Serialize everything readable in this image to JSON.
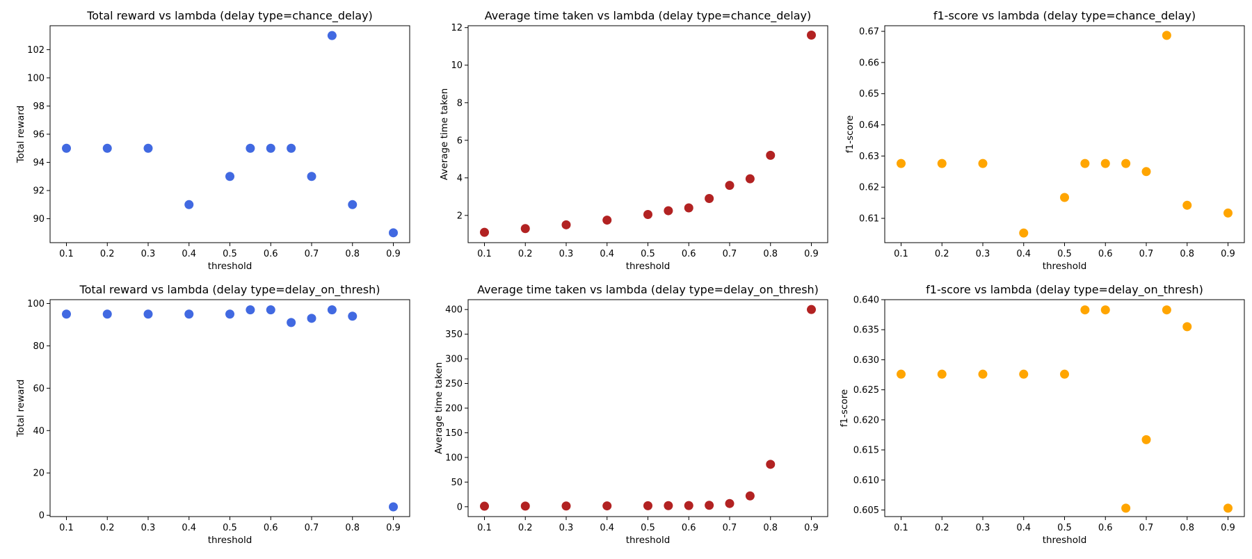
{
  "chart_data": [
    {
      "type": "scatter",
      "title": "Total reward vs lambda (delay type=chance_delay)",
      "xlabel": "threshold",
      "ylabel": "Total reward",
      "xlim": [
        0.06,
        0.94
      ],
      "ylim": [
        88.3,
        103.7
      ],
      "xticks": [
        0.1,
        0.2,
        0.3,
        0.4,
        0.5,
        0.6,
        0.7,
        0.8,
        0.9
      ],
      "xtick_labels": [
        "0.1",
        "0.2",
        "0.3",
        "0.4",
        "0.5",
        "0.6",
        "0.7",
        "0.8",
        "0.9"
      ],
      "yticks": [
        90,
        92,
        94,
        96,
        98,
        100,
        102
      ],
      "ytick_labels": [
        "90",
        "92",
        "94",
        "96",
        "98",
        "100",
        "102"
      ],
      "color": "#4169e1",
      "x": [
        0.1,
        0.2,
        0.3,
        0.4,
        0.5,
        0.55,
        0.6,
        0.65,
        0.7,
        0.75,
        0.8,
        0.9
      ],
      "y": [
        95,
        95,
        95,
        91,
        93,
        95,
        95,
        95,
        93,
        103,
        91,
        89
      ]
    },
    {
      "type": "scatter",
      "title": "Average time taken vs lambda (delay type=chance_delay)",
      "xlabel": "threshold",
      "ylabel": "Average time taken",
      "xlim": [
        0.06,
        0.94
      ],
      "ylim": [
        0.55,
        12.1
      ],
      "xticks": [
        0.1,
        0.2,
        0.3,
        0.4,
        0.5,
        0.6,
        0.7,
        0.8,
        0.9
      ],
      "xtick_labels": [
        "0.1",
        "0.2",
        "0.3",
        "0.4",
        "0.5",
        "0.6",
        "0.7",
        "0.8",
        "0.9"
      ],
      "yticks": [
        2,
        4,
        6,
        8,
        10,
        12
      ],
      "ytick_labels": [
        "2",
        "4",
        "6",
        "8",
        "10",
        "12"
      ],
      "color": "#b22222",
      "x": [
        0.1,
        0.2,
        0.3,
        0.4,
        0.5,
        0.55,
        0.6,
        0.65,
        0.7,
        0.75,
        0.8,
        0.9
      ],
      "y": [
        1.1,
        1.3,
        1.5,
        1.75,
        2.05,
        2.25,
        2.4,
        2.9,
        3.6,
        3.95,
        5.2,
        11.6
      ]
    },
    {
      "type": "scatter",
      "title": "f1-score vs lambda (delay type=chance_delay)",
      "xlabel": "threshold",
      "ylabel": "f1-score",
      "xlim": [
        0.06,
        0.94
      ],
      "ylim": [
        0.6022,
        0.6718
      ],
      "xticks": [
        0.1,
        0.2,
        0.3,
        0.4,
        0.5,
        0.6,
        0.7,
        0.8,
        0.9
      ],
      "xtick_labels": [
        "0.1",
        "0.2",
        "0.3",
        "0.4",
        "0.5",
        "0.6",
        "0.7",
        "0.8",
        "0.9"
      ],
      "yticks": [
        0.61,
        0.62,
        0.63,
        0.64,
        0.65,
        0.66,
        0.67
      ],
      "ytick_labels": [
        "0.61",
        "0.62",
        "0.63",
        "0.64",
        "0.65",
        "0.66",
        "0.67"
      ],
      "color": "#ffa500",
      "x": [
        0.1,
        0.2,
        0.3,
        0.4,
        0.5,
        0.55,
        0.6,
        0.65,
        0.7,
        0.75,
        0.8,
        0.9
      ],
      "y": [
        0.6276,
        0.6276,
        0.6276,
        0.6053,
        0.6167,
        0.6276,
        0.6276,
        0.6276,
        0.625,
        0.6687,
        0.6142,
        0.6117
      ]
    },
    {
      "type": "scatter",
      "title": "Total reward vs lambda (delay type=delay_on_thresh)",
      "xlabel": "threshold",
      "ylabel": "Total reward",
      "xlim": [
        0.06,
        0.94
      ],
      "ylim": [
        -0.6,
        101.8
      ],
      "xticks": [
        0.1,
        0.2,
        0.3,
        0.4,
        0.5,
        0.6,
        0.7,
        0.8,
        0.9
      ],
      "xtick_labels": [
        "0.1",
        "0.2",
        "0.3",
        "0.4",
        "0.5",
        "0.6",
        "0.7",
        "0.8",
        "0.9"
      ],
      "yticks": [
        0,
        20,
        40,
        60,
        80,
        100
      ],
      "ytick_labels": [
        "0",
        "20",
        "40",
        "60",
        "80",
        "100"
      ],
      "color": "#4169e1",
      "x": [
        0.1,
        0.2,
        0.3,
        0.4,
        0.5,
        0.55,
        0.6,
        0.65,
        0.7,
        0.75,
        0.8,
        0.9
      ],
      "y": [
        95,
        95,
        95,
        95,
        95,
        97,
        97,
        91,
        93,
        97,
        94,
        4
      ]
    },
    {
      "type": "scatter",
      "title": "Average time taken vs lambda (delay type=delay_on_thresh)",
      "xlabel": "threshold",
      "ylabel": "Average time taken",
      "xlim": [
        0.06,
        0.94
      ],
      "ylim": [
        -20,
        420
      ],
      "xticks": [
        0.1,
        0.2,
        0.3,
        0.4,
        0.5,
        0.6,
        0.7,
        0.8,
        0.9
      ],
      "xtick_labels": [
        "0.1",
        "0.2",
        "0.3",
        "0.4",
        "0.5",
        "0.6",
        "0.7",
        "0.8",
        "0.9"
      ],
      "yticks": [
        0,
        50,
        100,
        150,
        200,
        250,
        300,
        350,
        400
      ],
      "ytick_labels": [
        "0",
        "50",
        "100",
        "150",
        "200",
        "250",
        "300",
        "350",
        "400"
      ],
      "color": "#b22222",
      "x": [
        0.1,
        0.2,
        0.3,
        0.4,
        0.5,
        0.55,
        0.6,
        0.65,
        0.7,
        0.75,
        0.8,
        0.9
      ],
      "y": [
        1.1,
        1.3,
        1.5,
        1.75,
        2.05,
        2.25,
        2.4,
        2.9,
        6.5,
        22,
        86,
        400
      ]
    },
    {
      "type": "scatter",
      "title": "f1-score vs lambda (delay type=delay_on_thresh)",
      "xlabel": "threshold",
      "ylabel": "f1-score",
      "xlim": [
        0.06,
        0.94
      ],
      "ylim": [
        0.6039,
        0.64
      ],
      "xticks": [
        0.1,
        0.2,
        0.3,
        0.4,
        0.5,
        0.6,
        0.7,
        0.8,
        0.9
      ],
      "xtick_labels": [
        "0.1",
        "0.2",
        "0.3",
        "0.4",
        "0.5",
        "0.6",
        "0.7",
        "0.8",
        "0.9"
      ],
      "yticks": [
        0.605,
        0.61,
        0.615,
        0.62,
        0.625,
        0.63,
        0.635,
        0.64
      ],
      "ytick_labels": [
        "0.605",
        "0.610",
        "0.615",
        "0.620",
        "0.625",
        "0.630",
        "0.635",
        "0.640"
      ],
      "color": "#ffa500",
      "x": [
        0.1,
        0.2,
        0.3,
        0.4,
        0.5,
        0.55,
        0.6,
        0.65,
        0.7,
        0.75,
        0.8,
        0.9
      ],
      "y": [
        0.6276,
        0.6276,
        0.6276,
        0.6276,
        0.6276,
        0.6383,
        0.6383,
        0.6053,
        0.6167,
        0.6383,
        0.6355,
        0.6053
      ]
    }
  ]
}
